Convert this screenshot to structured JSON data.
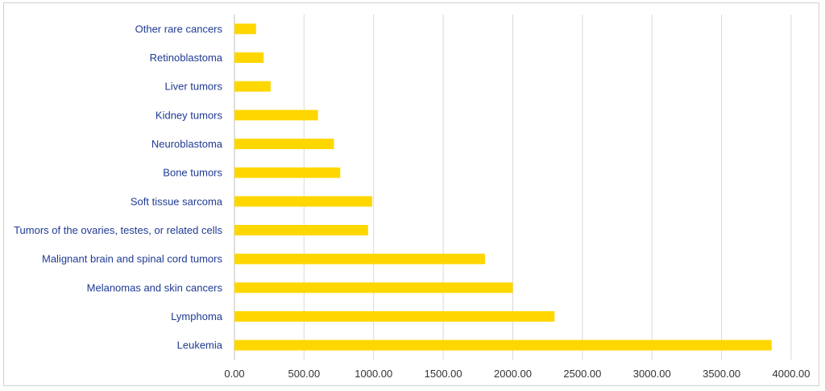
{
  "chart_data": {
    "type": "bar",
    "orientation": "horizontal",
    "title": "",
    "xlabel": "",
    "ylabel": "",
    "categories": [
      "Leukemia",
      "Lymphoma",
      "Melanomas and skin cancers",
      "Malignant brain and spinal cord tumors",
      "Tumors of the ovaries, testes, or related cells",
      "Soft tissue sarcoma",
      "Bone tumors",
      "Neuroblastoma",
      "Kidney tumors",
      "Liver tumors",
      "Retinoblastoma",
      "Other rare cancers"
    ],
    "values": [
      3860,
      2300,
      2000,
      1800,
      960,
      990,
      760,
      715,
      600,
      260,
      210,
      155
    ],
    "xlim": [
      0,
      4000
    ],
    "ticks": [
      "0.00",
      "500.00",
      "1000.00",
      "1500.00",
      "2000.00",
      "2500.00",
      "3000.00",
      "3500.00",
      "4000.00"
    ],
    "tick_values": [
      0,
      500,
      1000,
      1500,
      2000,
      2500,
      3000,
      3500,
      4000
    ],
    "grid": "vertical",
    "legend": "none",
    "colors": {
      "bar": "#FFD700",
      "grid": "#d9d9d9",
      "category_text": "#1f3a93",
      "tick_text": "#333333"
    }
  }
}
